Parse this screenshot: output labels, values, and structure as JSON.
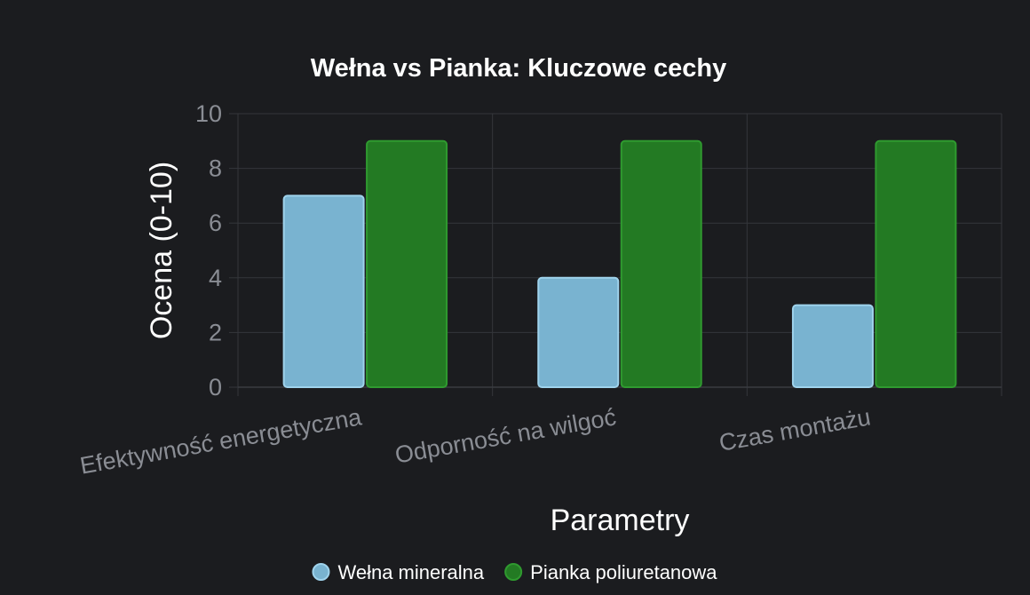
{
  "chart_data": {
    "type": "bar",
    "title": "Wełna vs Pianka: Kluczowe cechy",
    "xlabel": "Parametry",
    "ylabel": "Ocena (0-10)",
    "categories": [
      "Efektywność energetyczna",
      "Odporność na wilgoć",
      "Czas montażu"
    ],
    "series": [
      {
        "name": "Wełna mineralna",
        "values": [
          7,
          4,
          3
        ],
        "color": "#79b3d0",
        "border": "#9fd3ec"
      },
      {
        "name": "Pianka poliuretanowa",
        "values": [
          9,
          9,
          9
        ],
        "color": "#237a23",
        "border": "#2f9a2f"
      }
    ],
    "ylim": [
      0,
      10
    ],
    "yticks": [
      0,
      2,
      4,
      6,
      8,
      10
    ],
    "grid": true,
    "legend_position": "bottom"
  }
}
